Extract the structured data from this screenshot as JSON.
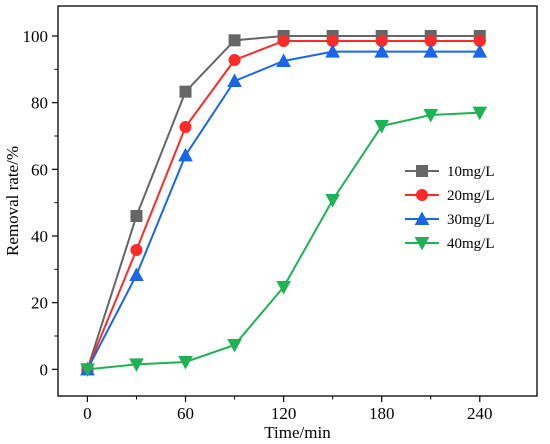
{
  "chart_data": {
    "type": "line",
    "title": "",
    "xlabel": "Time/min",
    "ylabel": "Removal rate/%",
    "xlim": [
      -18,
      275
    ],
    "ylim": [
      -8,
      109
    ],
    "xticks": [
      0,
      60,
      120,
      180,
      240
    ],
    "yticks": [
      0,
      20,
      40,
      60,
      80,
      100
    ],
    "grid": false,
    "legend_position": "center-right",
    "x": [
      0,
      30,
      60,
      90,
      120,
      150,
      180,
      210,
      240
    ],
    "series": [
      {
        "name": "10mg/L",
        "color": "#666666",
        "marker": "square",
        "values": [
          0,
          46,
          83.3,
          98.7,
          100,
          100,
          100,
          100,
          100
        ]
      },
      {
        "name": "20mg/L",
        "color": "#ff2a2a",
        "marker": "circle",
        "values": [
          0,
          35.8,
          72.7,
          92.8,
          98.5,
          98.5,
          98.5,
          98.5,
          98.5
        ]
      },
      {
        "name": "30mg/L",
        "color": "#1a66e6",
        "marker": "triangle-up",
        "values": [
          0,
          28.3,
          64.2,
          86.5,
          92.5,
          95.3,
          95.3,
          95.3,
          95.3
        ]
      },
      {
        "name": "40mg/L",
        "color": "#1fb254",
        "marker": "triangle-down",
        "values": [
          0,
          1.5,
          2.2,
          7.3,
          24.7,
          50.8,
          73,
          76.3,
          77
        ]
      }
    ]
  }
}
